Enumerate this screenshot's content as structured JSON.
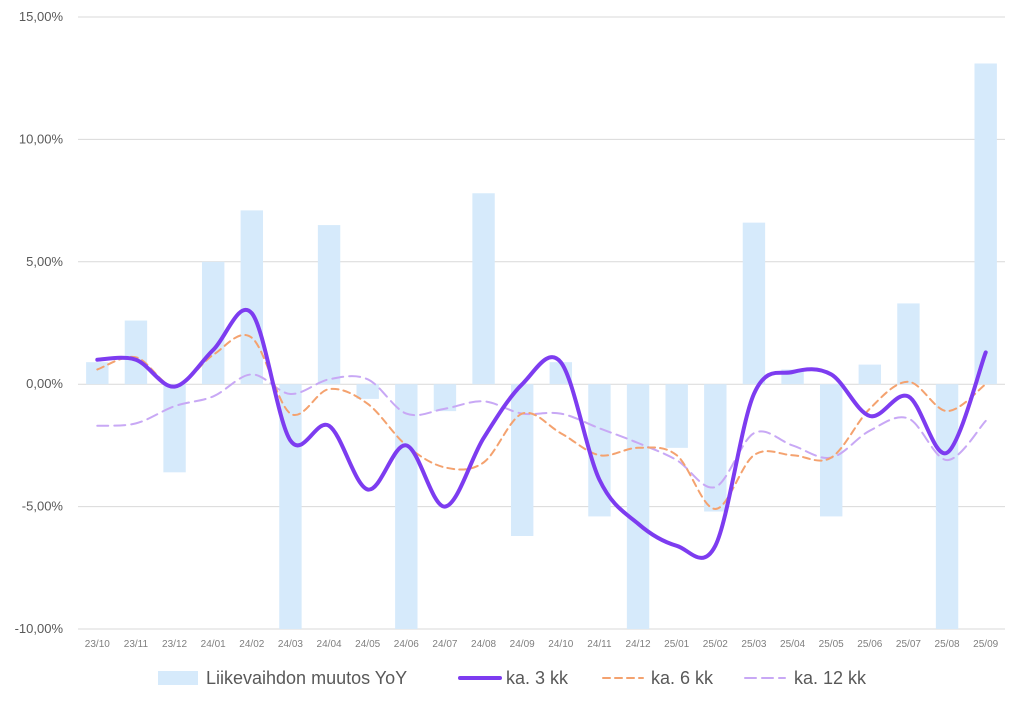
{
  "chart_data": {
    "type": "bar+line",
    "title": "",
    "xlabel": "",
    "ylabel": "",
    "ylim": [
      -0.1,
      0.15
    ],
    "y_ticks": [
      0.15,
      0.1,
      0.05,
      0.0,
      -0.05,
      -0.1
    ],
    "y_tick_labels": [
      "15,00%",
      "10,00%",
      "5,00%",
      "0,00%",
      "-5,00%",
      "-10,00%"
    ],
    "grid": "horizontal",
    "legend_position": "bottom",
    "categories": [
      "23/10",
      "23/11",
      "23/12",
      "24/01",
      "24/02",
      "24/03",
      "24/04",
      "24/05",
      "24/06",
      "24/07",
      "24/08",
      "24/09",
      "24/10",
      "24/11",
      "24/12",
      "25/01",
      "25/02",
      "25/03",
      "25/04",
      "25/05",
      "25/06",
      "25/07",
      "25/08",
      "25/09"
    ],
    "series": [
      {
        "name": "Liikevaihdon muutos YoY",
        "kind": "bar",
        "color": "#d6eafb",
        "values": [
          0.009,
          0.026,
          -0.036,
          0.05,
          0.071,
          -0.1,
          0.065,
          -0.006,
          -0.1,
          -0.011,
          0.078,
          -0.062,
          0.009,
          -0.054,
          -0.1,
          -0.026,
          -0.052,
          0.066,
          0.006,
          -0.054,
          0.008,
          0.033,
          -0.1,
          0.131
        ]
      },
      {
        "name": "ka. 3 kk",
        "kind": "line",
        "style": "solid",
        "color": "#7d3cf0",
        "values": [
          0.01,
          0.01,
          -0.001,
          0.014,
          0.029,
          -0.023,
          -0.017,
          -0.043,
          -0.025,
          -0.05,
          -0.022,
          0.0,
          0.009,
          -0.039,
          -0.057,
          -0.066,
          -0.066,
          -0.004,
          0.005,
          0.004,
          -0.013,
          -0.005,
          -0.028,
          0.013
        ]
      },
      {
        "name": "ka. 6 kk",
        "kind": "line",
        "style": "dashed",
        "color": "#f4a26f",
        "values": [
          0.006,
          0.011,
          -0.001,
          0.012,
          0.019,
          -0.012,
          -0.002,
          -0.008,
          -0.025,
          -0.034,
          -0.032,
          -0.012,
          -0.02,
          -0.029,
          -0.026,
          -0.029,
          -0.051,
          -0.029,
          -0.029,
          -0.03,
          -0.01,
          0.001,
          -0.011,
          0.0
        ]
      },
      {
        "name": "ka. 12 kk",
        "kind": "line",
        "style": "dashed",
        "color": "#c8a8f5",
        "values": [
          -0.017,
          -0.016,
          -0.009,
          -0.005,
          0.004,
          -0.004,
          0.002,
          0.002,
          -0.012,
          -0.01,
          -0.007,
          -0.012,
          -0.012,
          -0.018,
          -0.024,
          -0.031,
          -0.042,
          -0.02,
          -0.025,
          -0.03,
          -0.019,
          -0.014,
          -0.031,
          -0.015
        ]
      }
    ]
  }
}
